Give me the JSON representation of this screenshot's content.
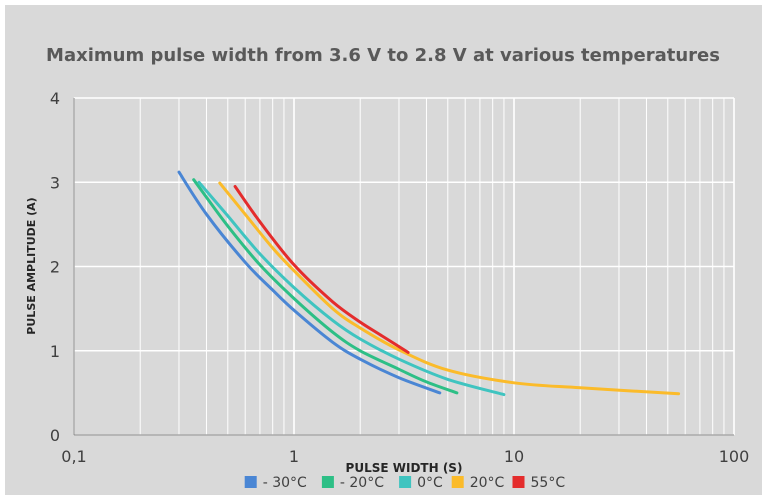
{
  "chart_data": {
    "type": "line",
    "title": "Maximum pulse width from 3.6 V to 2.8 V at various temperatures",
    "xlabel": "PULSE WIDTH (S)",
    "ylabel": "PULSE AMPLITUDE (A)",
    "x_scale": "log",
    "xlim": [
      0.1,
      100
    ],
    "ylim": [
      0,
      4
    ],
    "x_ticks": [
      0.1,
      1,
      10,
      100
    ],
    "x_tick_labels": [
      "0,1",
      "1",
      "10",
      "100"
    ],
    "y_ticks": [
      0,
      1,
      2,
      3,
      4
    ],
    "y_tick_labels": [
      "0",
      "1",
      "2",
      "3",
      "4"
    ],
    "grid": true,
    "legend_position": "bottom",
    "series": [
      {
        "name": "- 30°C",
        "color": "#4a86d4",
        "x": [
          0.3,
          0.4,
          0.6,
          0.8,
          1.0,
          1.5,
          2.0,
          3.0,
          4.6
        ],
        "y": [
          3.12,
          2.62,
          2.05,
          1.72,
          1.48,
          1.1,
          0.9,
          0.68,
          0.5
        ]
      },
      {
        "name": "- 20°C",
        "color": "#2dbf86",
        "x": [
          0.35,
          0.5,
          0.7,
          1.0,
          1.5,
          2.0,
          3.0,
          4.0,
          5.5
        ],
        "y": [
          3.03,
          2.48,
          2.02,
          1.62,
          1.22,
          1.0,
          0.78,
          0.63,
          0.5
        ]
      },
      {
        "name": "0°C",
        "color": "#3fc4c0",
        "x": [
          0.37,
          0.5,
          0.7,
          1.0,
          1.5,
          2.0,
          3.0,
          5.0,
          9.0
        ],
        "y": [
          3.0,
          2.6,
          2.15,
          1.75,
          1.36,
          1.14,
          0.9,
          0.66,
          0.48
        ]
      },
      {
        "name": "20°C",
        "color": "#fbbb2a",
        "x": [
          0.46,
          0.6,
          0.8,
          1.0,
          1.5,
          2.0,
          3.0,
          5.0,
          10.0,
          20.0,
          56.0
        ],
        "y": [
          2.99,
          2.62,
          2.22,
          1.95,
          1.5,
          1.27,
          1.01,
          0.77,
          0.62,
          0.56,
          0.49
        ]
      },
      {
        "name": "55°C",
        "color": "#e42c2c",
        "x": [
          0.54,
          0.7,
          1.0,
          1.5,
          2.0,
          2.5,
          3.3
        ],
        "y": [
          2.95,
          2.53,
          2.02,
          1.58,
          1.34,
          1.18,
          0.98
        ]
      }
    ]
  }
}
